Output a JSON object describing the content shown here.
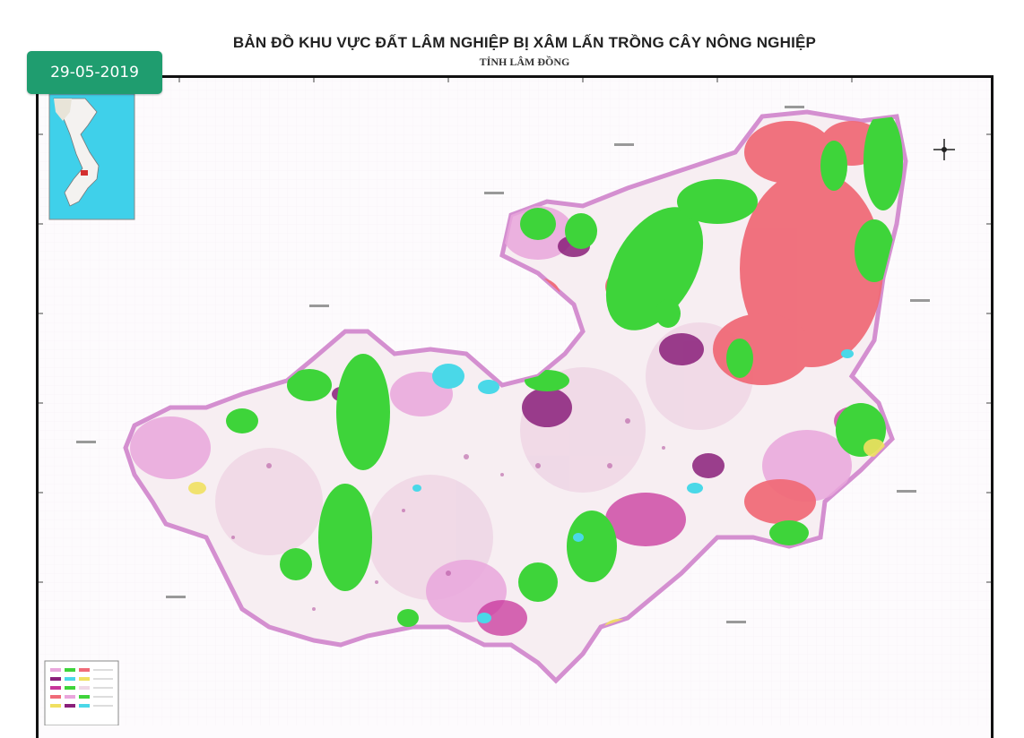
{
  "header": {
    "title": "BẢN ĐỒ KHU VỰC ĐẤT LÂM NGHIỆP BỊ XÂM LẤN TRỒNG CÂY NÔNG NGHIỆP",
    "subtitle": "TỈNH LÂM ĐỒNG"
  },
  "badge": {
    "date": "29-05-2019",
    "color": "#1f9d6f"
  },
  "map": {
    "inset": "vietnam-inset-map",
    "legend": "map-legend",
    "compass": "compass-icon",
    "colors": {
      "forest": "#3ed43a",
      "encroached": "#f06b78",
      "purple": "#8a1f7a",
      "pink": "#e8a0d8",
      "water": "#4ad8e8",
      "yellow": "#f0e060"
    }
  }
}
